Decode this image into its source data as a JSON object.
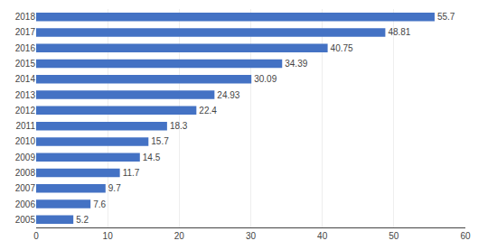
{
  "chart_data": {
    "type": "bar",
    "orientation": "horizontal",
    "categories": [
      "2018",
      "2017",
      "2016",
      "2015",
      "2014",
      "2013",
      "2012",
      "2011",
      "2010",
      "2009",
      "2008",
      "2007",
      "2006",
      "2005"
    ],
    "values": [
      55.7,
      48.81,
      40.75,
      34.39,
      30.09,
      24.93,
      22.4,
      18.3,
      15.7,
      14.5,
      11.7,
      9.7,
      7.6,
      5.2
    ],
    "color": "#4472c4",
    "xlim": [
      0,
      60
    ],
    "xticks": [
      0,
      10,
      20,
      30,
      40,
      50,
      60
    ],
    "grid": true,
    "data_labels": true
  }
}
